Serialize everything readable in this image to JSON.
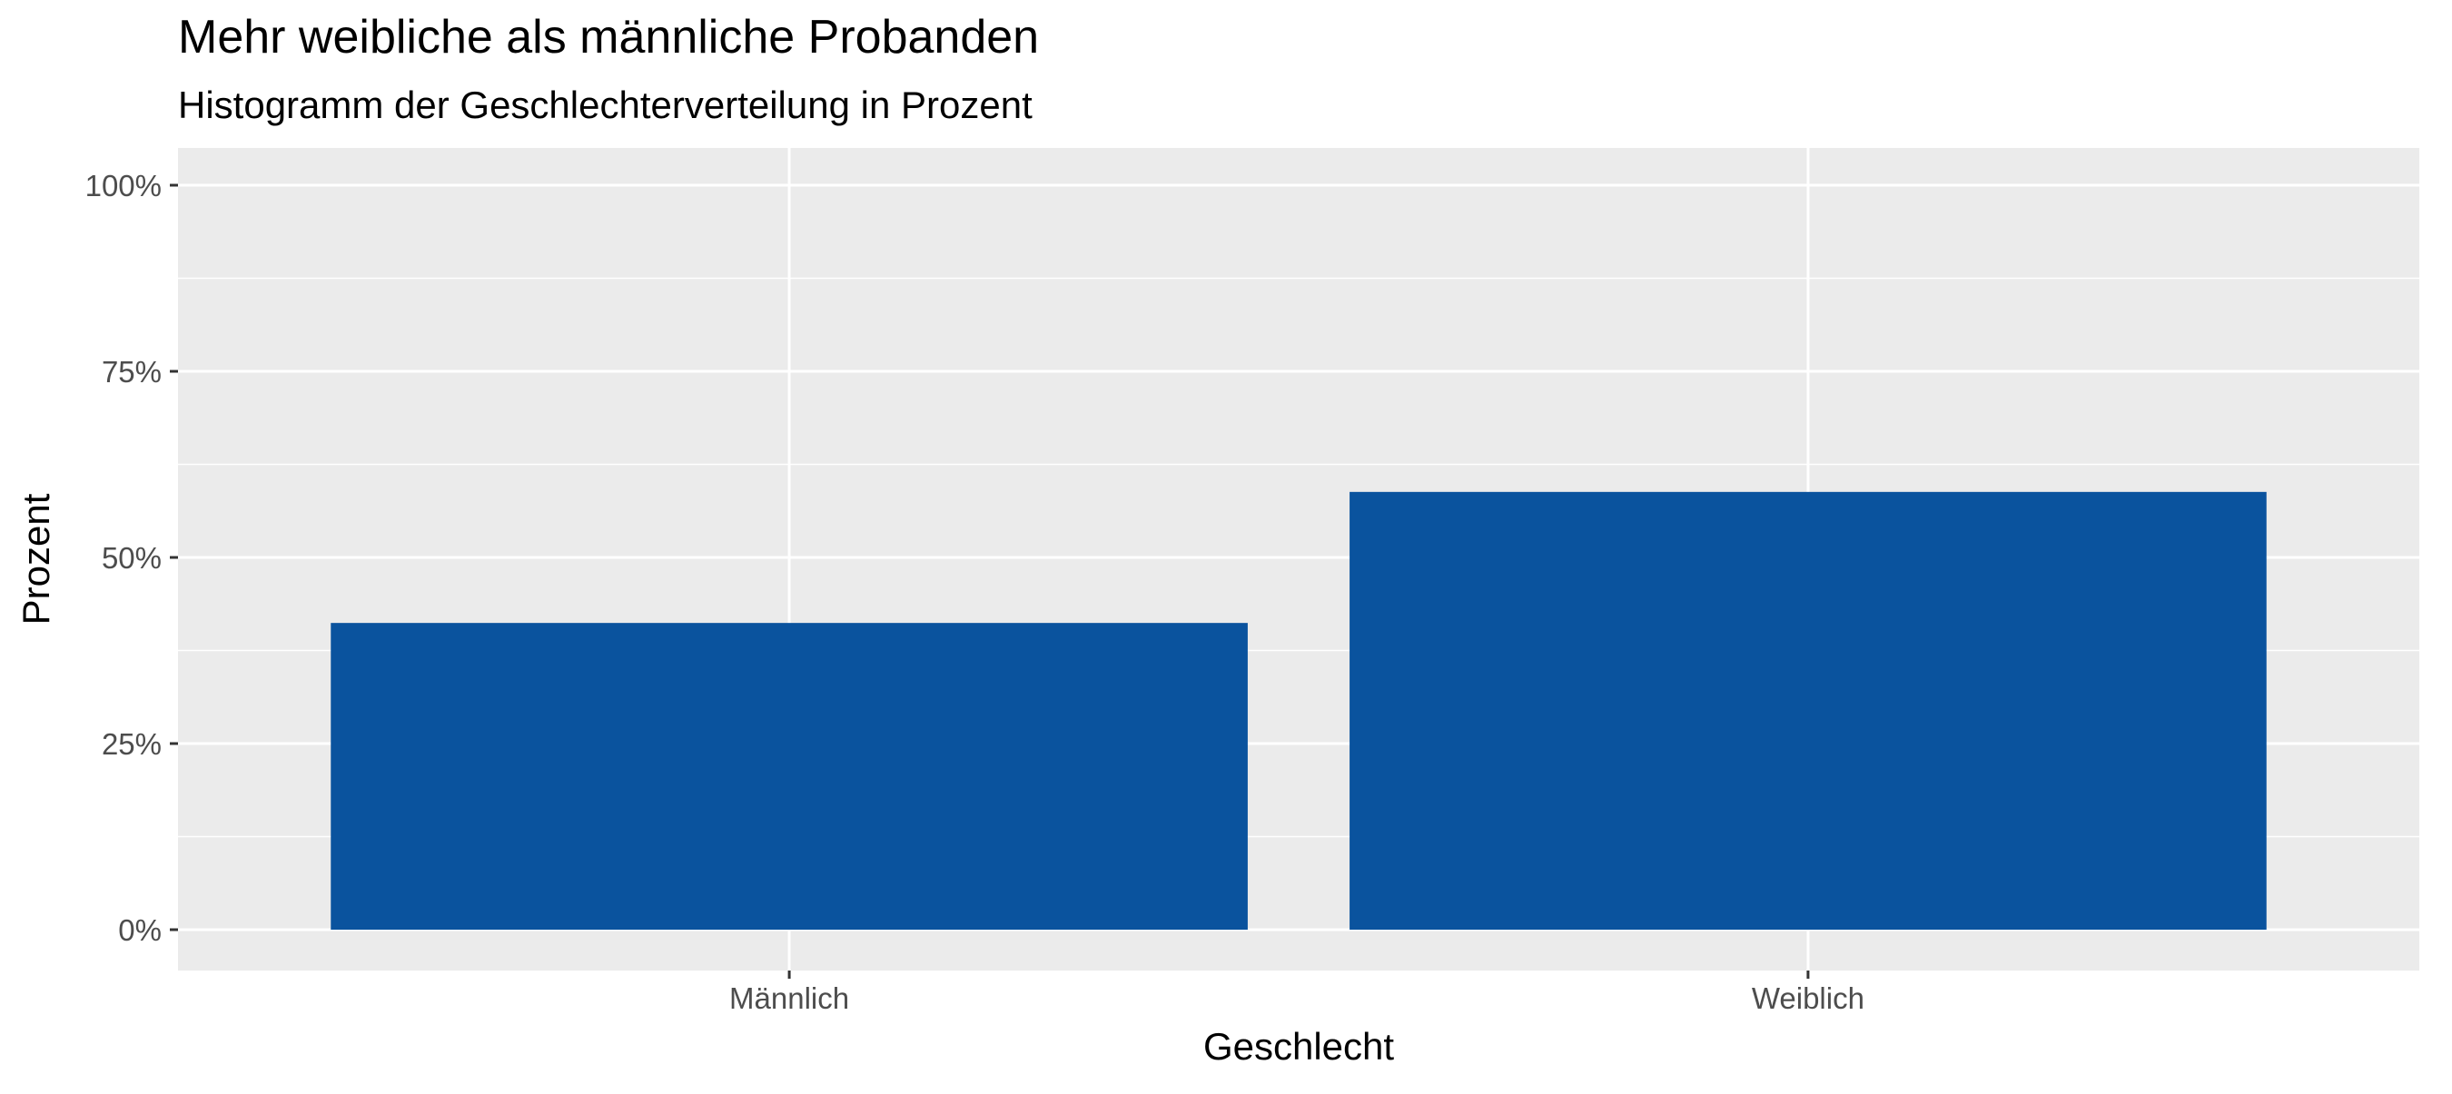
{
  "chart_data": {
    "type": "bar",
    "title": "Mehr weibliche als männliche Probanden",
    "subtitle": "Histogramm der Geschlechterverteilung in Prozent",
    "xlabel": "Geschlecht",
    "ylabel": "Prozent",
    "categories": [
      "Männlich",
      "Weiblich"
    ],
    "values": [
      41.2,
      58.8
    ],
    "unit": "%",
    "ylim": [
      0,
      100
    ],
    "yticks": [
      0,
      25,
      50,
      75,
      100
    ],
    "ytick_labels": [
      "0%",
      "25%",
      "50%",
      "75%",
      "100%"
    ],
    "grid": true,
    "legend": "none",
    "colors": {
      "bar": "#0A539E",
      "panel_background": "#EBEBEB",
      "grid_line": "#FFFFFF",
      "tick_label": "#4D4D4D",
      "text": "#000000"
    }
  }
}
